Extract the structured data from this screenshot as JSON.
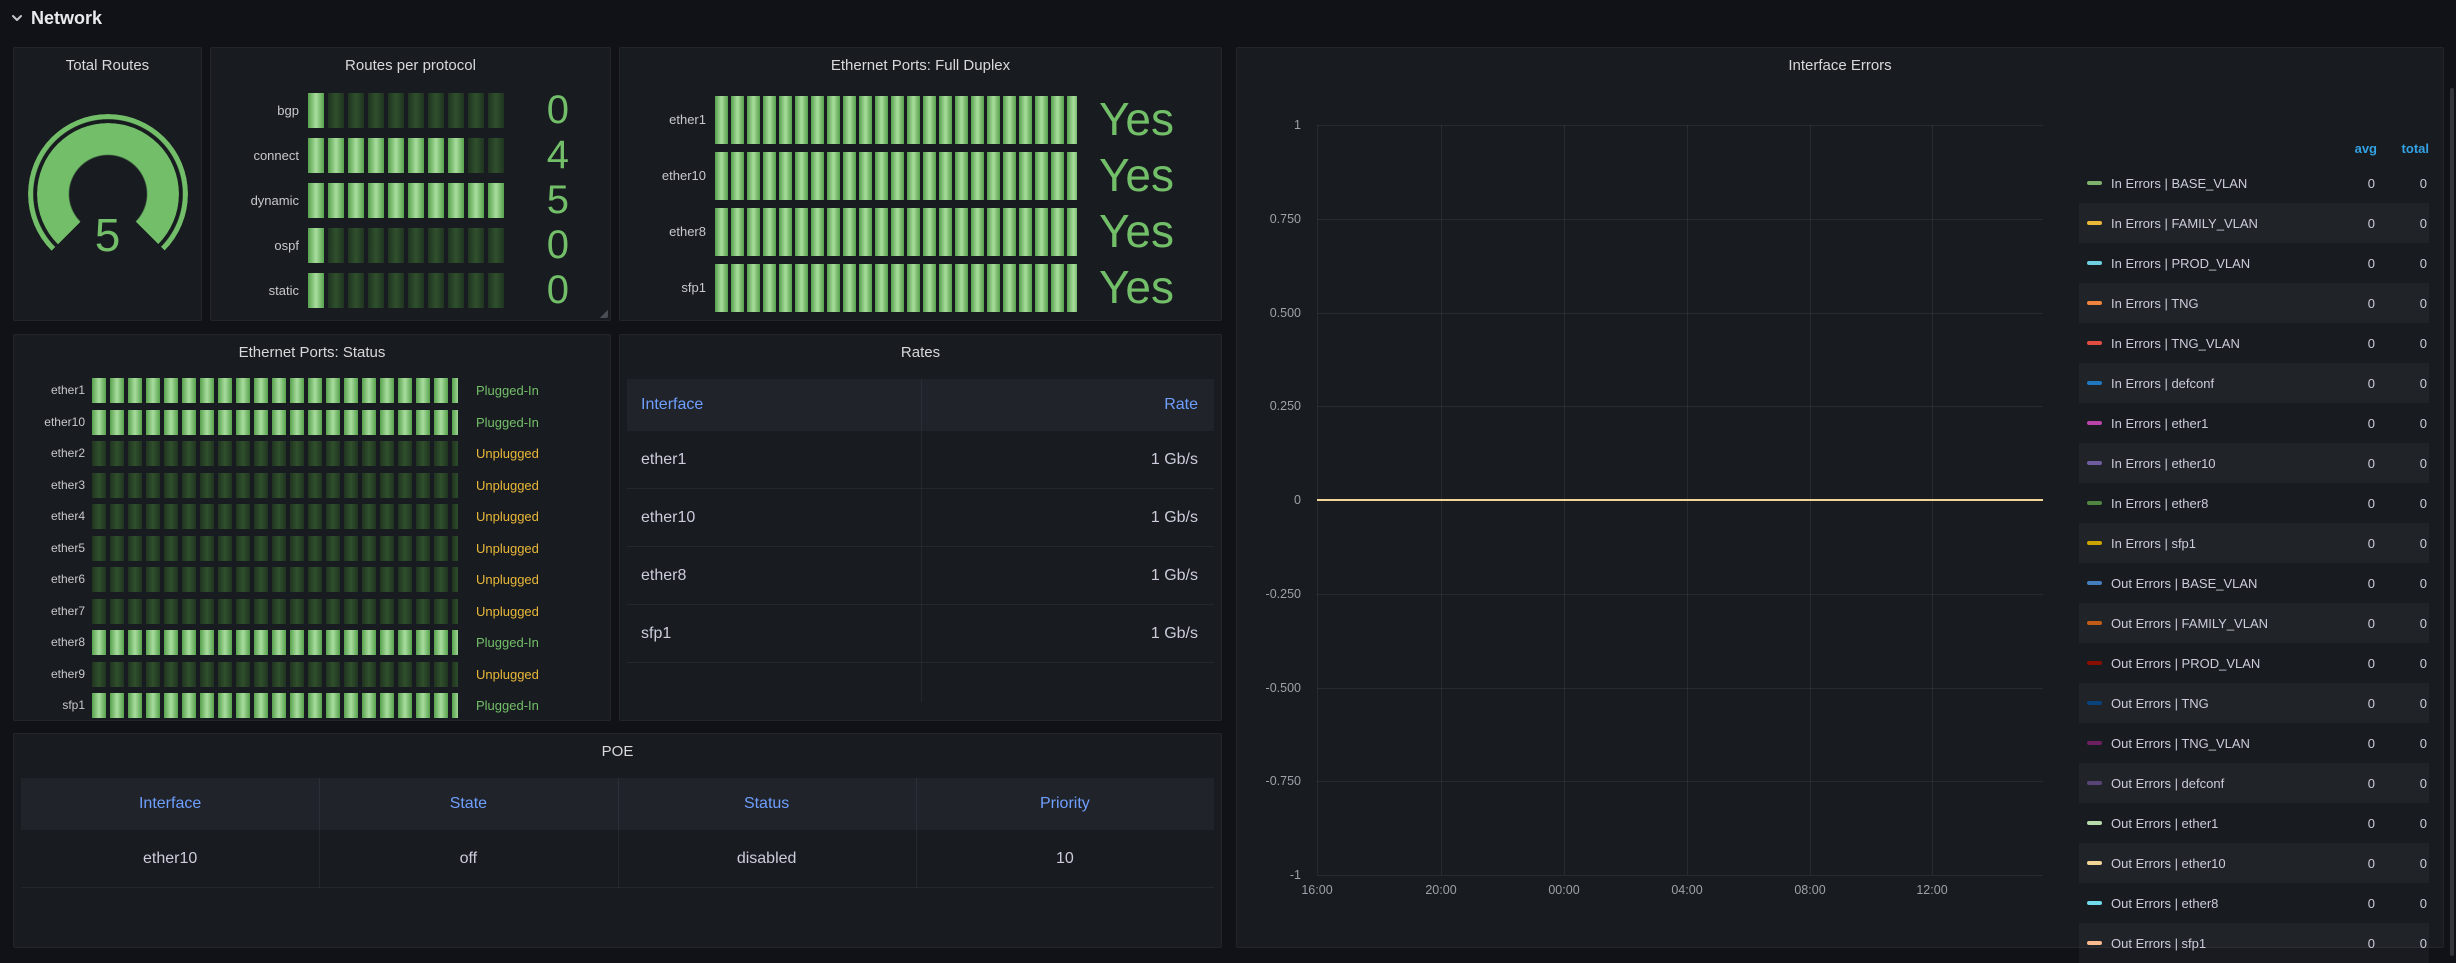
{
  "header": {
    "title": "Network"
  },
  "colors": {
    "accent_green": "#73BF69",
    "warn_yellow": "#EAB839",
    "link_blue": "#6E9FFF",
    "legend_header_blue": "#33A2E5",
    "zero_line": "#F4D598",
    "page_bg": "#111217",
    "panel_bg": "#181B1F"
  },
  "total_routes": {
    "title": "Total Routes",
    "value": "5"
  },
  "routes_per_protocol": {
    "title": "Routes per protocol",
    "rows": [
      {
        "label": "bgp",
        "value": "0",
        "pct": 8
      },
      {
        "label": "connect",
        "value": "4",
        "pct": 80
      },
      {
        "label": "dynamic",
        "value": "5",
        "pct": 100
      },
      {
        "label": "ospf",
        "value": "0",
        "pct": 8
      },
      {
        "label": "static",
        "value": "0",
        "pct": 8
      }
    ]
  },
  "full_duplex": {
    "title": "Ethernet Ports: Full Duplex",
    "rows": [
      {
        "label": "ether1",
        "value": "Yes"
      },
      {
        "label": "ether10",
        "value": "Yes"
      },
      {
        "label": "ether8",
        "value": "Yes"
      },
      {
        "label": "sfp1",
        "value": "Yes"
      }
    ]
  },
  "port_status": {
    "title": "Ethernet Ports: Status",
    "rows": [
      {
        "label": "ether1",
        "status": "Plugged-In",
        "on": true
      },
      {
        "label": "ether10",
        "status": "Plugged-In",
        "on": true
      },
      {
        "label": "ether2",
        "status": "Unplugged",
        "on": false
      },
      {
        "label": "ether3",
        "status": "Unplugged",
        "on": false
      },
      {
        "label": "ether4",
        "status": "Unplugged",
        "on": false
      },
      {
        "label": "ether5",
        "status": "Unplugged",
        "on": false
      },
      {
        "label": "ether6",
        "status": "Unplugged",
        "on": false
      },
      {
        "label": "ether7",
        "status": "Unplugged",
        "on": false
      },
      {
        "label": "ether8",
        "status": "Plugged-In",
        "on": true
      },
      {
        "label": "ether9",
        "status": "Unplugged",
        "on": false
      },
      {
        "label": "sfp1",
        "status": "Plugged-In",
        "on": true
      }
    ]
  },
  "rates": {
    "title": "Rates",
    "columns": [
      "Interface",
      "Rate"
    ],
    "rows": [
      [
        "ether1",
        "1 Gb/s"
      ],
      [
        "ether10",
        "1 Gb/s"
      ],
      [
        "ether8",
        "1 Gb/s"
      ],
      [
        "sfp1",
        "1 Gb/s"
      ]
    ]
  },
  "poe": {
    "title": "POE",
    "columns": [
      "Interface",
      "State",
      "Status",
      "Priority"
    ],
    "rows": [
      [
        "ether10",
        "off",
        "disabled",
        "10"
      ]
    ]
  },
  "interface_errors": {
    "title": "Interface Errors",
    "legend_columns": [
      "avg",
      "total"
    ]
  },
  "chart_data": {
    "type": "line",
    "title": "Interface Errors",
    "xlabel": "",
    "ylabel": "",
    "ylim": [
      -1,
      1
    ],
    "grid": true,
    "legend_position": "right",
    "legend_calcs": [
      "avg",
      "total"
    ],
    "y_tick_labels": [
      "1",
      "0.750",
      "0.500",
      "0.250",
      "0",
      "-0.250",
      "-0.500",
      "-0.750",
      "-1"
    ],
    "x_tick_labels": [
      "16:00",
      "20:00",
      "00:00",
      "04:00",
      "08:00",
      "12:00"
    ],
    "x": [
      "16:00",
      "20:00",
      "00:00",
      "04:00",
      "08:00",
      "12:00"
    ],
    "series": [
      {
        "name": "In Errors | BASE_VLAN",
        "color": "#7EB26D",
        "values": [
          0,
          0,
          0,
          0,
          0,
          0
        ],
        "avg": 0,
        "total": 0
      },
      {
        "name": "In Errors | FAMILY_VLAN",
        "color": "#EAB839",
        "values": [
          0,
          0,
          0,
          0,
          0,
          0
        ],
        "avg": 0,
        "total": 0
      },
      {
        "name": "In Errors | PROD_VLAN",
        "color": "#6ED0E0",
        "values": [
          0,
          0,
          0,
          0,
          0,
          0
        ],
        "avg": 0,
        "total": 0
      },
      {
        "name": "In Errors | TNG",
        "color": "#EF843C",
        "values": [
          0,
          0,
          0,
          0,
          0,
          0
        ],
        "avg": 0,
        "total": 0
      },
      {
        "name": "In Errors | TNG_VLAN",
        "color": "#E24D42",
        "values": [
          0,
          0,
          0,
          0,
          0,
          0
        ],
        "avg": 0,
        "total": 0
      },
      {
        "name": "In Errors | defconf",
        "color": "#1F78C1",
        "values": [
          0,
          0,
          0,
          0,
          0,
          0
        ],
        "avg": 0,
        "total": 0
      },
      {
        "name": "In Errors | ether1",
        "color": "#BA43A9",
        "values": [
          0,
          0,
          0,
          0,
          0,
          0
        ],
        "avg": 0,
        "total": 0
      },
      {
        "name": "In Errors | ether10",
        "color": "#705DA0",
        "values": [
          0,
          0,
          0,
          0,
          0,
          0
        ],
        "avg": 0,
        "total": 0
      },
      {
        "name": "In Errors | ether8",
        "color": "#508642",
        "values": [
          0,
          0,
          0,
          0,
          0,
          0
        ],
        "avg": 0,
        "total": 0
      },
      {
        "name": "In Errors | sfp1",
        "color": "#CCA300",
        "values": [
          0,
          0,
          0,
          0,
          0,
          0
        ],
        "avg": 0,
        "total": 0
      },
      {
        "name": "Out Errors | BASE_VLAN",
        "color": "#447EBC",
        "values": [
          0,
          0,
          0,
          0,
          0,
          0
        ],
        "avg": 0,
        "total": 0
      },
      {
        "name": "Out Errors | FAMILY_VLAN",
        "color": "#C15C17",
        "values": [
          0,
          0,
          0,
          0,
          0,
          0
        ],
        "avg": 0,
        "total": 0
      },
      {
        "name": "Out Errors | PROD_VLAN",
        "color": "#890F02",
        "values": [
          0,
          0,
          0,
          0,
          0,
          0
        ],
        "avg": 0,
        "total": 0
      },
      {
        "name": "Out Errors | TNG",
        "color": "#0A437C",
        "values": [
          0,
          0,
          0,
          0,
          0,
          0
        ],
        "avg": 0,
        "total": 0
      },
      {
        "name": "Out Errors | TNG_VLAN",
        "color": "#6D1F62",
        "values": [
          0,
          0,
          0,
          0,
          0,
          0
        ],
        "avg": 0,
        "total": 0
      },
      {
        "name": "Out Errors | defconf",
        "color": "#584477",
        "values": [
          0,
          0,
          0,
          0,
          0,
          0
        ],
        "avg": 0,
        "total": 0
      },
      {
        "name": "Out Errors | ether1",
        "color": "#B7DBAB",
        "values": [
          0,
          0,
          0,
          0,
          0,
          0
        ],
        "avg": 0,
        "total": 0
      },
      {
        "name": "Out Errors | ether10",
        "color": "#F4D598",
        "values": [
          0,
          0,
          0,
          0,
          0,
          0
        ],
        "avg": 0,
        "total": 0
      },
      {
        "name": "Out Errors | ether8",
        "color": "#70DBED",
        "values": [
          0,
          0,
          0,
          0,
          0,
          0
        ],
        "avg": 0,
        "total": 0
      },
      {
        "name": "Out Errors | sfp1",
        "color": "#F9BA8F",
        "values": [
          0,
          0,
          0,
          0,
          0,
          0
        ],
        "avg": 0,
        "total": 0
      }
    ]
  }
}
